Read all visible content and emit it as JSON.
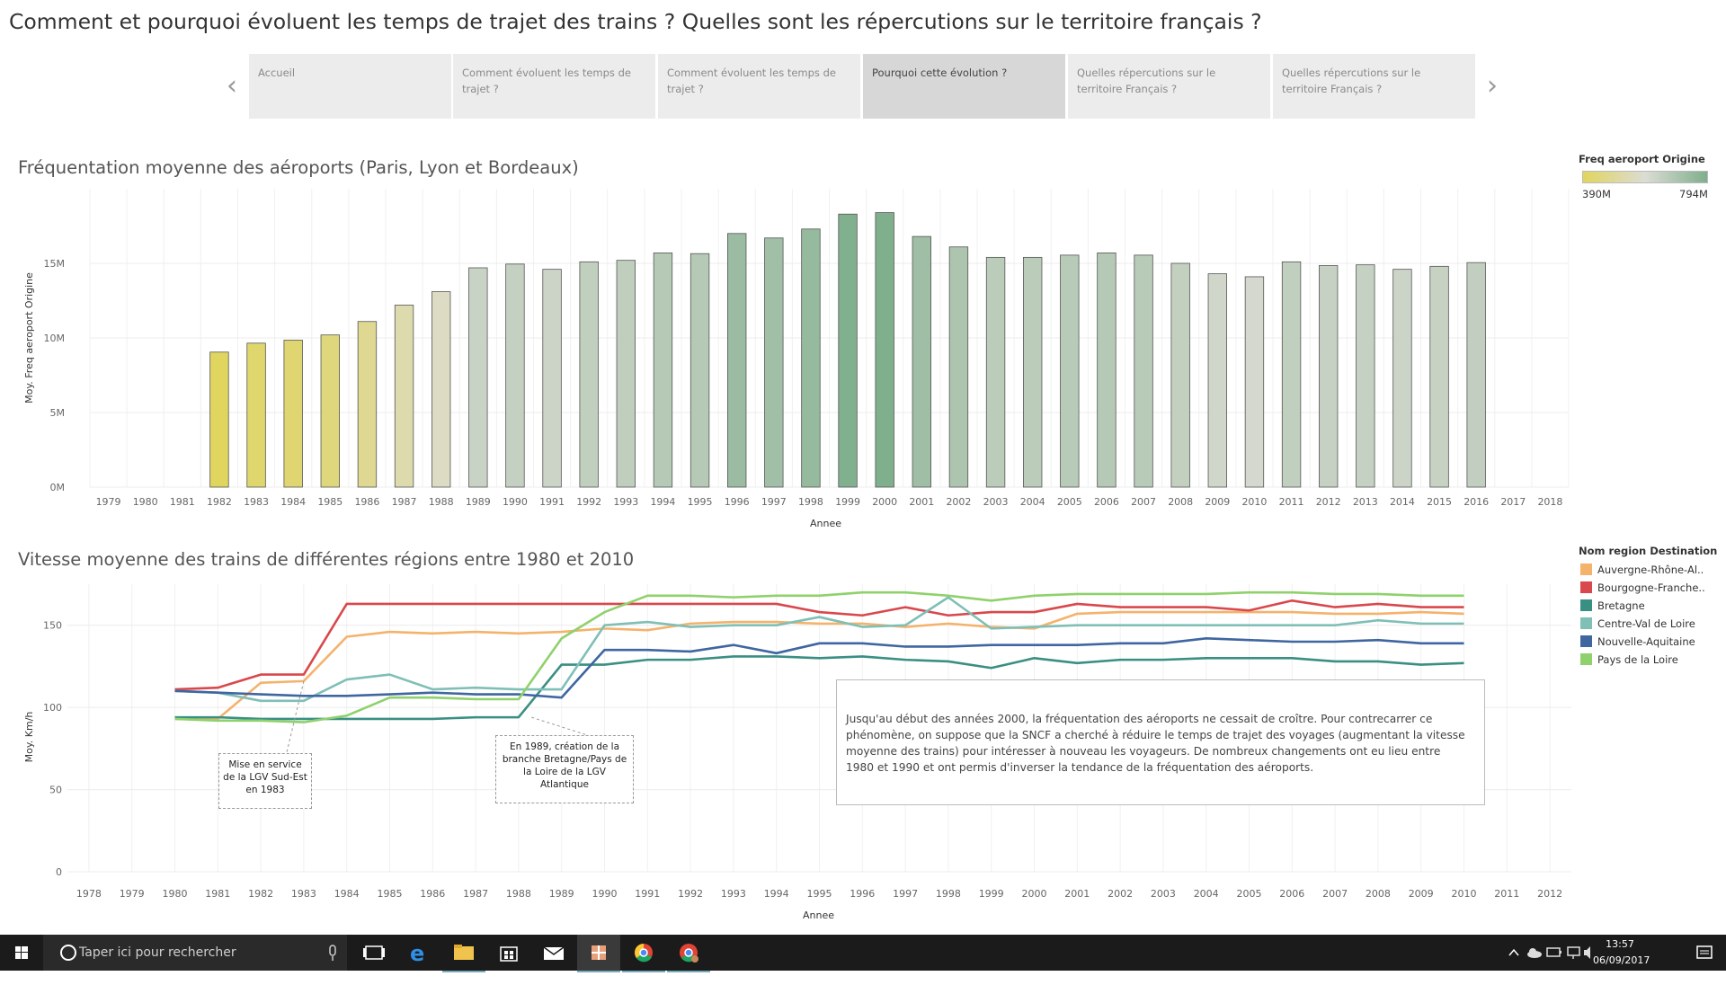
{
  "page": {
    "title": "Comment et pourquoi évoluent les temps de trajet des trains ? Quelles sont les répercutions sur le territoire français ?"
  },
  "nav": {
    "prev": "‹",
    "next": "›",
    "tabs": [
      {
        "label": "Accueil",
        "active": false
      },
      {
        "label": "Comment évoluent les temps de trajet ?",
        "active": false
      },
      {
        "label": "Comment évoluent les temps de trajet ?",
        "active": false
      },
      {
        "label": "Pourquoi cette évolution ?",
        "active": true
      },
      {
        "label": "Quelles répercutions sur le territoire Français ?",
        "active": false
      },
      {
        "label": "Quelles répercutions sur le territoire Français ?",
        "active": false
      }
    ]
  },
  "legend1": {
    "title": "Freq aeroport Origine",
    "min_label": "390M",
    "max_label": "794M",
    "color_low": "#e0d55e",
    "color_mid": "#dcdcd4",
    "color_high": "#7faf8c"
  },
  "legend2": {
    "title": "Nom region Destination"
  },
  "annotations": {
    "main": "Jusqu'au début des années 2000, la fréquentation des aéroports ne cessait de croître. Pour contrecarrer ce phénomène, on suppose que la SNCF a cherché à réduire le temps de trajet des voyages (augmentant la vitesse moyenne des trains) pour intéresser à nouveau les voyageurs. De nombreux changements ont eu lieu entre 1980 et 1990 et ont permis d'inverser la tendance de la fréquentation des aéroports.",
    "lgv_sud_est": "Mise en service de la LGV Sud-Est en 1983",
    "lgv_atlantique": "En 1989, création de la branche Bretagne/Pays de la Loire de la LGV Atlantique"
  },
  "taskbar": {
    "search_placeholder": "Taper ici pour rechercher",
    "time": "13:57",
    "date": "06/09/2017"
  },
  "chart_data": [
    {
      "type": "bar",
      "title": "Fréquentation moyenne des aéroports (Paris, Lyon et Bordeaux)",
      "xlabel": "Annee",
      "ylabel": "Moy. Freq aeroport Origine",
      "ylim": [
        0,
        20000000
      ],
      "yticks": [
        0,
        5000000,
        10000000,
        15000000
      ],
      "ytick_labels": [
        "0M",
        "5M",
        "10M",
        "15M"
      ],
      "categories": [
        "1979",
        "1980",
        "1981",
        "1982",
        "1983",
        "1984",
        "1985",
        "1986",
        "1987",
        "1988",
        "1989",
        "1990",
        "1991",
        "1992",
        "1993",
        "1994",
        "1995",
        "1996",
        "1997",
        "1998",
        "1999",
        "2000",
        "2001",
        "2002",
        "2003",
        "2004",
        "2005",
        "2006",
        "2007",
        "2008",
        "2009",
        "2010",
        "2011",
        "2012",
        "2013",
        "2014",
        "2015",
        "2016",
        "2017",
        "2018"
      ],
      "values": [
        null,
        null,
        null,
        9050000,
        9650000,
        9850000,
        10200000,
        11100000,
        12200000,
        13100000,
        14700000,
        14950000,
        14600000,
        15100000,
        15200000,
        15700000,
        15650000,
        17000000,
        16700000,
        17300000,
        18300000,
        18400000,
        16800000,
        16100000,
        15400000,
        15400000,
        15550000,
        15700000,
        15550000,
        15000000,
        14300000,
        14100000,
        15100000,
        14850000,
        14900000,
        14600000,
        14800000,
        15050000,
        null,
        null
      ]
    },
    {
      "type": "line",
      "title": "Vitesse moyenne des trains de différentes régions entre 1980 et 2010",
      "xlabel": "Annee",
      "ylabel": "Moy. Km/h",
      "ylim": [
        0,
        175
      ],
      "yticks": [
        0,
        50,
        100,
        150
      ],
      "x_ticks": [
        "1978",
        "1979",
        "1980",
        "1981",
        "1982",
        "1983",
        "1984",
        "1985",
        "1986",
        "1987",
        "1988",
        "1989",
        "1990",
        "1991",
        "1992",
        "1993",
        "1994",
        "1995",
        "1996",
        "1997",
        "1998",
        "1999",
        "2000",
        "2001",
        "2002",
        "2003",
        "2004",
        "2005",
        "2006",
        "2007",
        "2008",
        "2009",
        "2010",
        "2011",
        "2012"
      ],
      "x": [
        1980,
        1981,
        1982,
        1983,
        1984,
        1985,
        1986,
        1987,
        1988,
        1989,
        1990,
        1991,
        1992,
        1993,
        1994,
        1995,
        1996,
        1997,
        1998,
        1999,
        2000,
        2001,
        2002,
        2003,
        2004,
        2005,
        2006,
        2007,
        2008,
        2009,
        2010
      ],
      "series": [
        {
          "name": "Auvergne-Rhône-Al..",
          "color": "#f5b26b",
          "values": [
            93,
            93,
            115,
            116,
            143,
            146,
            145,
            146,
            145,
            146,
            148,
            147,
            151,
            152,
            152,
            151,
            151,
            149,
            151,
            149,
            148,
            157,
            158,
            158,
            158,
            158,
            158,
            157,
            157,
            158,
            157
          ]
        },
        {
          "name": "Bourgogne-Franche..",
          "color": "#d9484c",
          "values": [
            111,
            112,
            120,
            120,
            163,
            163,
            163,
            163,
            163,
            163,
            163,
            163,
            163,
            163,
            163,
            158,
            156,
            161,
            156,
            158,
            158,
            163,
            161,
            161,
            161,
            159,
            165,
            161,
            163,
            161,
            161
          ]
        },
        {
          "name": "Bretagne",
          "color": "#3a8f83",
          "values": [
            94,
            94,
            93,
            93,
            93,
            93,
            93,
            94,
            94,
            126,
            126,
            129,
            129,
            131,
            131,
            130,
            131,
            129,
            128,
            124,
            130,
            127,
            129,
            129,
            130,
            130,
            130,
            128,
            128,
            126,
            127
          ]
        },
        {
          "name": "Centre-Val de Loire",
          "color": "#7fbfb6",
          "values": [
            110,
            109,
            104,
            104,
            117,
            120,
            111,
            112,
            111,
            111,
            150,
            152,
            149,
            150,
            150,
            155,
            149,
            150,
            167,
            148,
            149,
            150,
            150,
            150,
            150,
            150,
            150,
            150,
            153,
            151,
            151
          ]
        },
        {
          "name": "Nouvelle-Aquitaine",
          "color": "#3f66a0",
          "values": [
            110,
            109,
            108,
            107,
            107,
            108,
            109,
            108,
            108,
            106,
            135,
            135,
            134,
            138,
            133,
            139,
            139,
            137,
            137,
            138,
            138,
            138,
            139,
            139,
            142,
            141,
            140,
            140,
            141,
            139,
            139
          ]
        },
        {
          "name": "Pays de la Loire",
          "color": "#8fd16c",
          "values": [
            93,
            92,
            92,
            91,
            95,
            106,
            106,
            105,
            105,
            142,
            158,
            168,
            168,
            167,
            168,
            168,
            170,
            170,
            168,
            165,
            168,
            169,
            169,
            169,
            169,
            170,
            170,
            169,
            169,
            168,
            168
          ]
        }
      ]
    }
  ]
}
